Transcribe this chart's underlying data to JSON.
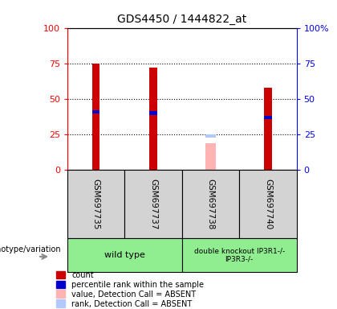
{
  "title": "GDS4450 / 1444822_at",
  "samples": [
    "GSM697735",
    "GSM697737",
    "GSM697738",
    "GSM697740"
  ],
  "count_values": [
    75,
    72,
    null,
    58
  ],
  "percentile_values": [
    41,
    40,
    null,
    37
  ],
  "absent_value": [
    null,
    null,
    19,
    null
  ],
  "absent_rank": [
    null,
    null,
    24,
    null
  ],
  "ylim": [
    0,
    100
  ],
  "bar_color_present": "#cc0000",
  "bar_color_percentile": "#0000cc",
  "bar_color_absent_val": "#ffb3b3",
  "bar_color_absent_rank": "#b3c8ff",
  "left_yticks": [
    0,
    25,
    50,
    75,
    100
  ],
  "right_yticks": [
    0,
    25,
    50,
    75,
    100
  ],
  "legend_items": [
    [
      "count",
      "#cc0000"
    ],
    [
      "percentile rank within the sample",
      "#0000cc"
    ],
    [
      "value, Detection Call = ABSENT",
      "#ffb3b3"
    ],
    [
      "rank, Detection Call = ABSENT",
      "#b3c8ff"
    ]
  ],
  "bar_width": 0.13,
  "sample_area_color": "#d3d3d3",
  "genotype_color": "#90EE90",
  "fig_bg": "#ffffff"
}
